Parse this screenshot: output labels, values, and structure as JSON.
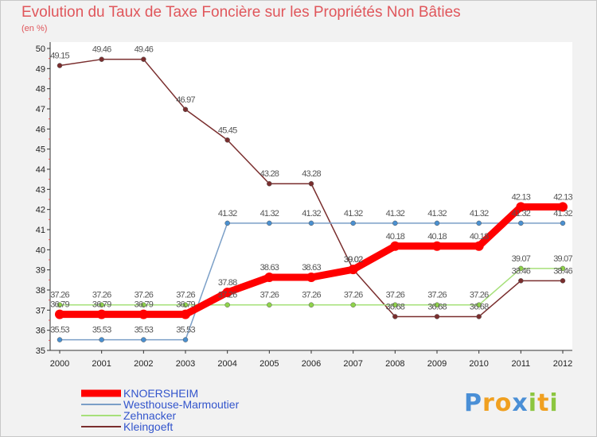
{
  "chart_data": {
    "type": "line",
    "title": "Evolution du Taux de Taxe Foncière sur les Propriétés Non Bâties",
    "ylabel": "(en %)",
    "xlabel": "",
    "ylim": [
      35,
      50
    ],
    "yticks": [
      35,
      36,
      37,
      38,
      39,
      40,
      41,
      42,
      43,
      44,
      45,
      46,
      47,
      48,
      49,
      50
    ],
    "categories": [
      "2000",
      "2001",
      "2002",
      "2003",
      "2004",
      "2005",
      "2006",
      "2007",
      "2008",
      "2009",
      "2010",
      "2011",
      "2012"
    ],
    "grid": false,
    "legend_position": "bottom-left",
    "series": [
      {
        "name": "KNOERSHEIM",
        "color": "#ff0000",
        "values": [
          36.79,
          36.79,
          36.79,
          36.79,
          37.88,
          38.63,
          38.63,
          39.02,
          40.18,
          40.18,
          40.18,
          42.13,
          42.13
        ],
        "labels": [
          "36.79",
          "36.79",
          "36.79",
          "36.79",
          "37.88",
          "38.63",
          "38.63",
          "39.02",
          "40.18",
          "40.18",
          "40.18",
          "42.13",
          "42.13"
        ]
      },
      {
        "name": "Westhouse-Marmoutier",
        "color": "#7b9fc7",
        "values": [
          35.53,
          35.53,
          35.53,
          35.53,
          41.32,
          41.32,
          41.32,
          41.32,
          41.32,
          41.32,
          41.32,
          41.32,
          41.32
        ],
        "labels": [
          "35.53",
          "35.53",
          "35.53",
          "35.53",
          "41.32",
          "41.32",
          "41.32",
          "41.32",
          "41.32",
          "41.32",
          "41.32",
          "41.32",
          "41.32"
        ]
      },
      {
        "name": "Zehnacker",
        "color": "#a6e07a",
        "values": [
          37.26,
          37.26,
          37.26,
          37.26,
          37.26,
          37.26,
          37.26,
          37.26,
          37.26,
          37.26,
          37.26,
          39.07,
          39.07
        ],
        "labels": [
          "37.26",
          "37.26",
          "37.26",
          "37.26",
          "37.26",
          "37.26",
          "37.26",
          "37.26",
          "37.26",
          "37.26",
          "37.26",
          "39.07",
          "39.07"
        ]
      },
      {
        "name": "Kleingoeft",
        "color": "#7a2e2e",
        "values": [
          49.15,
          49.46,
          49.46,
          46.97,
          45.45,
          43.28,
          43.28,
          39.02,
          36.68,
          36.68,
          36.68,
          38.46,
          38.46
        ],
        "labels": [
          "49.15",
          "49.46",
          "49.46",
          "46.97",
          "45.45",
          "43.28",
          "43.28",
          "39.02",
          "36.68",
          "36.68",
          "36.68",
          "38.46",
          "38.46"
        ]
      }
    ]
  },
  "logo": {
    "text": "Proxiti",
    "letters": [
      "P",
      "r",
      "o",
      "x",
      "i",
      "t",
      "i"
    ],
    "colors": [
      "#4a8fd6",
      "#f0a020",
      "#f0a020",
      "#4a8fd6",
      "#8cc63f",
      "#f0a020",
      "#8cc63f"
    ]
  }
}
